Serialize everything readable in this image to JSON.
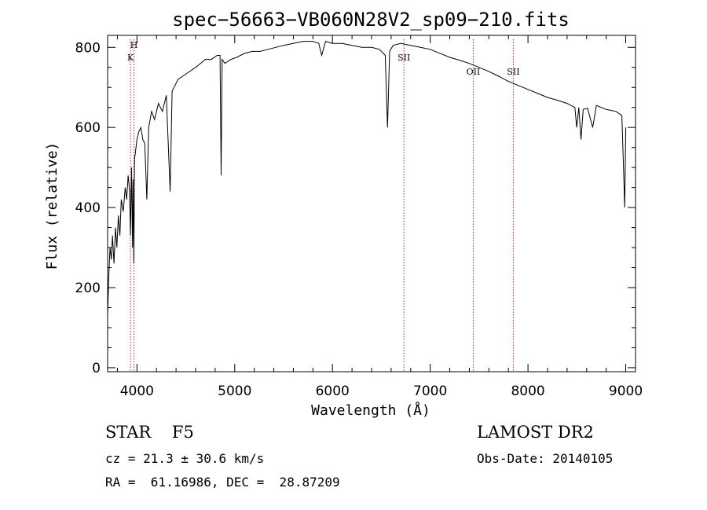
{
  "chart_data": {
    "type": "line",
    "title": "spec−56663−VB060N28V2_sp09−210.fits",
    "xlabel": "Wavelength (Å)",
    "ylabel": "Flux (relative)",
    "xlim": [
      3700,
      9100
    ],
    "ylim": [
      -10,
      830
    ],
    "xticks": [
      4000,
      5000,
      6000,
      7000,
      8000,
      9000
    ],
    "yticks": [
      0,
      200,
      400,
      600,
      800
    ],
    "grid": false,
    "series": [
      {
        "x": [
          3700,
          3712,
          3725,
          3738,
          3750,
          3765,
          3780,
          3795,
          3810,
          3825,
          3840,
          3860,
          3880,
          3895,
          3910,
          3925,
          3933,
          3945,
          3955,
          3960,
          3968,
          3975,
          3985,
          4000,
          4020,
          4040,
          4060,
          4080,
          4101,
          4120,
          4150,
          4180,
          4220,
          4260,
          4300,
          4340,
          4360,
          4380,
          4420,
          4480,
          4540,
          4600,
          4650,
          4700,
          4760,
          4820,
          4850,
          4861,
          4872,
          4900,
          4960,
          5020,
          5100,
          5180,
          5260,
          5340,
          5420,
          5500,
          5600,
          5700,
          5800,
          5860,
          5890,
          5930,
          6000,
          6100,
          6200,
          6300,
          6400,
          6480,
          6540,
          6563,
          6585,
          6620,
          6700,
          6800,
          6900,
          7000,
          7100,
          7200,
          7300,
          7400,
          7500,
          7600,
          7700,
          7800,
          7900,
          8000,
          8100,
          8200,
          8300,
          8400,
          8480,
          8498,
          8520,
          8542,
          8565,
          8610,
          8662,
          8700,
          8800,
          8900,
          8960,
          8990,
          9000
        ],
        "y": [
          130,
          230,
          300,
          270,
          330,
          260,
          350,
          300,
          380,
          330,
          420,
          390,
          450,
          420,
          480,
          440,
          330,
          500,
          300,
          470,
          260,
          520,
          540,
          570,
          590,
          600,
          570,
          560,
          420,
          600,
          640,
          620,
          660,
          640,
          680,
          440,
          690,
          700,
          720,
          730,
          740,
          750,
          760,
          770,
          770,
          780,
          780,
          480,
          770,
          760,
          770,
          775,
          785,
          790,
          790,
          795,
          800,
          805,
          810,
          815,
          815,
          810,
          780,
          815,
          810,
          810,
          805,
          800,
          800,
          795,
          780,
          600,
          790,
          805,
          810,
          805,
          800,
          795,
          785,
          775,
          768,
          760,
          750,
          740,
          728,
          715,
          705,
          695,
          685,
          675,
          668,
          660,
          650,
          600,
          650,
          570,
          645,
          648,
          600,
          655,
          645,
          640,
          630,
          400,
          600
        ]
      }
    ],
    "line_labels": [
      {
        "label": "H",
        "x": 3970
      },
      {
        "label": "K",
        "x": 3934
      },
      {
        "label": "SII",
        "x": 6731
      },
      {
        "label": "OII",
        "x": 7440
      },
      {
        "label": "SII",
        "x": 7850
      }
    ]
  },
  "footer": {
    "object": "STAR    F5",
    "survey": "LAMOST DR2",
    "redshift": "cz = 21.3 ± 30.6 km/s",
    "obs_date": "Obs-Date: 20140105",
    "coords": "RA =  61.16986, DEC =  28.87209"
  }
}
